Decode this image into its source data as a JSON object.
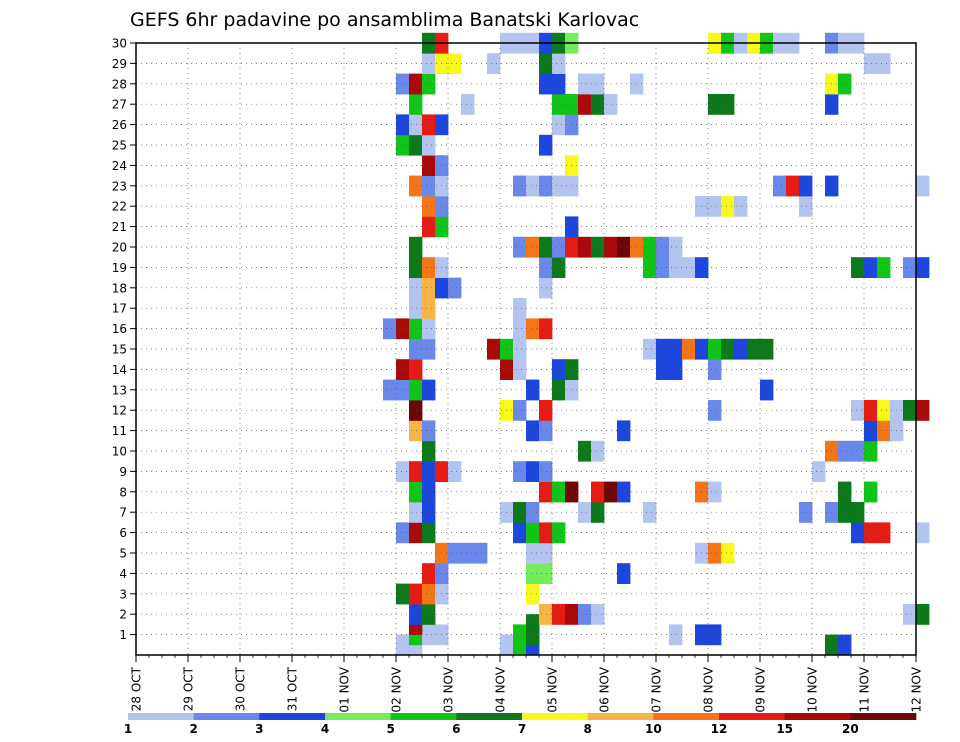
{
  "chart_data": {
    "type": "heatmap",
    "title": "GEFS 6hr padavine po ansamblima Banatski Karlovac",
    "x_tick_labels": [
      "28 OCT",
      "29 OCT",
      "30 OCT",
      "31 OCT",
      "01 NOV",
      "02 NOV",
      "03 NOV",
      "04 NOV",
      "05 NOV",
      "06 NOV",
      "07 NOV",
      "08 NOV",
      "09 NOV",
      "10 NOV",
      "11 NOV",
      "12 NOV"
    ],
    "x_range_days": [
      0,
      15
    ],
    "y_range": [
      0,
      30
    ],
    "y_ticks": [
      1,
      2,
      3,
      4,
      5,
      6,
      7,
      8,
      9,
      10,
      11,
      12,
      13,
      14,
      15,
      16,
      17,
      18,
      19,
      20,
      21,
      22,
      23,
      24,
      25,
      26,
      27,
      28,
      29,
      30
    ],
    "grid": "dotted",
    "colorbar": {
      "placement": "bottom",
      "labels": [
        "1",
        "2",
        "3",
        "4",
        "5",
        "6",
        "7",
        "8",
        "10",
        "12",
        "15",
        "20"
      ],
      "colors": [
        "#b4c4f0",
        "#6a88ea",
        "#1c46dc",
        "#74ec5e",
        "#10c418",
        "#0c7a1a",
        "#f8f81c",
        "#f8b446",
        "#f47418",
        "#e41c14",
        "#a80a0a",
        "#6e0606"
      ]
    },
    "cells_note": "each cell: [x in days since 28 OCT, member y, color class 0-11]",
    "cells": [
      [
        5.0,
        0.5,
        0
      ],
      [
        5.25,
        0.5,
        0
      ],
      [
        5.25,
        1,
        4
      ],
      [
        5.5,
        1,
        0
      ],
      [
        5.75,
        1,
        0
      ],
      [
        5.25,
        1.5,
        10
      ],
      [
        7.0,
        0.5,
        0
      ],
      [
        7.25,
        0.5,
        4
      ],
      [
        7.5,
        0.5,
        2
      ],
      [
        7.25,
        1,
        4
      ],
      [
        7.5,
        1,
        5
      ],
      [
        7.5,
        1.5,
        5
      ],
      [
        10.25,
        1,
        0
      ],
      [
        10.75,
        1,
        2
      ],
      [
        11.0,
        1,
        2
      ],
      [
        13.25,
        0.5,
        5
      ],
      [
        13.5,
        0.5,
        2
      ],
      [
        5.25,
        2,
        2
      ],
      [
        5.5,
        2,
        5
      ],
      [
        7.75,
        2,
        7
      ],
      [
        8.0,
        2,
        9
      ],
      [
        8.25,
        2,
        10
      ],
      [
        8.5,
        2,
        1
      ],
      [
        8.75,
        2,
        0
      ],
      [
        14.75,
        2,
        0
      ],
      [
        15.0,
        2,
        5
      ],
      [
        5.0,
        3,
        5
      ],
      [
        5.25,
        3,
        9
      ],
      [
        5.5,
        3,
        8
      ],
      [
        5.75,
        3,
        0
      ],
      [
        7.5,
        3,
        6
      ],
      [
        5.5,
        4,
        9
      ],
      [
        5.75,
        4,
        1
      ],
      [
        7.5,
        4,
        3
      ],
      [
        7.75,
        4,
        3
      ],
      [
        9.25,
        4,
        2
      ],
      [
        5.75,
        5,
        8
      ],
      [
        6.0,
        5,
        1
      ],
      [
        6.25,
        5,
        1
      ],
      [
        6.5,
        5,
        1
      ],
      [
        7.5,
        5,
        0
      ],
      [
        7.75,
        5,
        0
      ],
      [
        10.75,
        5,
        0
      ],
      [
        11.0,
        5,
        8
      ],
      [
        11.25,
        5,
        6
      ],
      [
        5.0,
        6,
        1
      ],
      [
        5.25,
        6,
        10
      ],
      [
        5.5,
        6,
        5
      ],
      [
        7.25,
        6,
        2
      ],
      [
        7.5,
        6,
        4
      ],
      [
        7.75,
        6,
        9
      ],
      [
        8.0,
        6,
        4
      ],
      [
        13.75,
        6,
        2
      ],
      [
        14.0,
        6,
        9
      ],
      [
        14.25,
        6,
        9
      ],
      [
        15.0,
        6,
        0
      ],
      [
        5.25,
        7,
        0
      ],
      [
        5.5,
        7,
        2
      ],
      [
        7.0,
        7,
        0
      ],
      [
        7.25,
        7,
        5
      ],
      [
        7.5,
        7,
        1
      ],
      [
        8.5,
        7,
        0
      ],
      [
        8.75,
        7,
        5
      ],
      [
        9.75,
        7,
        0
      ],
      [
        12.75,
        7,
        1
      ],
      [
        13.25,
        7,
        1
      ],
      [
        13.5,
        7,
        5
      ],
      [
        13.75,
        7,
        5
      ],
      [
        5.25,
        8,
        4
      ],
      [
        5.5,
        8,
        2
      ],
      [
        7.75,
        8,
        9
      ],
      [
        8.0,
        8,
        4
      ],
      [
        8.25,
        8,
        11
      ],
      [
        8.75,
        8,
        9
      ],
      [
        9.0,
        8,
        11
      ],
      [
        9.25,
        8,
        2
      ],
      [
        10.75,
        8,
        8
      ],
      [
        11.0,
        8,
        0
      ],
      [
        13.5,
        8,
        5
      ],
      [
        14.0,
        8,
        4
      ],
      [
        5.0,
        9,
        0
      ],
      [
        5.25,
        9,
        9
      ],
      [
        5.5,
        9,
        2
      ],
      [
        5.75,
        9,
        9
      ],
      [
        6.0,
        9,
        0
      ],
      [
        7.25,
        9,
        1
      ],
      [
        7.5,
        9,
        2
      ],
      [
        7.75,
        9,
        1
      ],
      [
        13.0,
        9,
        0
      ],
      [
        5.5,
        10,
        5
      ],
      [
        8.5,
        10,
        5
      ],
      [
        8.75,
        10,
        0
      ],
      [
        13.25,
        10,
        8
      ],
      [
        13.5,
        10,
        1
      ],
      [
        13.75,
        10,
        1
      ],
      [
        14.0,
        10,
        4
      ],
      [
        5.25,
        11,
        7
      ],
      [
        5.5,
        11,
        1
      ],
      [
        7.5,
        11,
        2
      ],
      [
        7.75,
        11,
        1
      ],
      [
        9.25,
        11,
        2
      ],
      [
        14.0,
        11,
        2
      ],
      [
        14.25,
        11,
        8
      ],
      [
        14.5,
        11,
        0
      ],
      [
        5.25,
        12,
        11
      ],
      [
        7.0,
        12,
        6
      ],
      [
        7.25,
        12,
        1
      ],
      [
        7.75,
        12,
        9
      ],
      [
        11.0,
        12,
        1
      ],
      [
        13.75,
        12,
        0
      ],
      [
        14.0,
        12,
        9
      ],
      [
        14.25,
        12,
        6
      ],
      [
        14.5,
        12,
        0
      ],
      [
        14.75,
        12,
        5
      ],
      [
        15.0,
        12,
        10
      ],
      [
        4.75,
        13,
        1
      ],
      [
        5.0,
        13,
        1
      ],
      [
        5.25,
        13,
        4
      ],
      [
        5.5,
        13,
        2
      ],
      [
        7.5,
        13,
        2
      ],
      [
        8.0,
        13,
        5
      ],
      [
        8.25,
        13,
        0
      ],
      [
        12.0,
        13,
        2
      ],
      [
        5.0,
        14,
        10
      ],
      [
        5.25,
        14,
        9
      ],
      [
        7.0,
        14,
        10
      ],
      [
        7.25,
        14,
        0
      ],
      [
        8.0,
        14,
        2
      ],
      [
        8.25,
        14,
        5
      ],
      [
        10.0,
        14,
        2
      ],
      [
        10.25,
        14,
        2
      ],
      [
        11.0,
        14,
        1
      ],
      [
        5.25,
        15,
        1
      ],
      [
        5.5,
        15,
        1
      ],
      [
        6.75,
        15,
        10
      ],
      [
        7.0,
        15,
        4
      ],
      [
        7.25,
        15,
        0
      ],
      [
        9.75,
        15,
        0
      ],
      [
        10.0,
        15,
        2
      ],
      [
        10.25,
        15,
        2
      ],
      [
        10.5,
        15,
        8
      ],
      [
        10.75,
        15,
        2
      ],
      [
        11.0,
        15,
        4
      ],
      [
        11.25,
        15,
        5
      ],
      [
        11.5,
        15,
        2
      ],
      [
        11.75,
        15,
        5
      ],
      [
        12.0,
        15,
        5
      ],
      [
        4.75,
        16,
        1
      ],
      [
        5.0,
        16,
        10
      ],
      [
        5.25,
        16,
        4
      ],
      [
        5.5,
        16,
        0
      ],
      [
        7.25,
        16,
        0
      ],
      [
        7.5,
        16,
        8
      ],
      [
        7.75,
        16,
        9
      ],
      [
        5.25,
        17,
        0
      ],
      [
        5.5,
        17,
        7
      ],
      [
        7.25,
        17,
        0
      ],
      [
        5.25,
        18,
        0
      ],
      [
        5.5,
        18,
        7
      ],
      [
        5.75,
        18,
        2
      ],
      [
        6.0,
        18,
        1
      ],
      [
        7.75,
        18,
        0
      ],
      [
        5.25,
        19,
        5
      ],
      [
        5.5,
        19,
        8
      ],
      [
        5.75,
        19,
        0
      ],
      [
        7.75,
        19,
        1
      ],
      [
        8.0,
        19,
        5
      ],
      [
        9.75,
        19,
        4
      ],
      [
        10.0,
        19,
        1
      ],
      [
        10.25,
        19,
        0
      ],
      [
        10.5,
        19,
        0
      ],
      [
        10.75,
        19,
        2
      ],
      [
        13.75,
        19,
        5
      ],
      [
        14.0,
        19,
        2
      ],
      [
        14.25,
        19,
        4
      ],
      [
        14.75,
        19,
        1
      ],
      [
        15.0,
        19,
        2
      ],
      [
        5.25,
        20,
        5
      ],
      [
        7.25,
        20,
        1
      ],
      [
        7.5,
        20,
        8
      ],
      [
        7.75,
        20,
        5
      ],
      [
        8.0,
        20,
        1
      ],
      [
        8.25,
        20,
        9
      ],
      [
        8.5,
        20,
        10
      ],
      [
        8.75,
        20,
        5
      ],
      [
        9.0,
        20,
        10
      ],
      [
        9.25,
        20,
        11
      ],
      [
        9.5,
        20,
        8
      ],
      [
        9.75,
        20,
        4
      ],
      [
        10.0,
        20,
        1
      ],
      [
        10.25,
        20,
        0
      ],
      [
        5.5,
        21,
        9
      ],
      [
        5.75,
        21,
        4
      ],
      [
        8.25,
        21,
        2
      ],
      [
        5.5,
        22,
        8
      ],
      [
        5.75,
        22,
        1
      ],
      [
        10.75,
        22,
        0
      ],
      [
        11.0,
        22,
        0
      ],
      [
        11.25,
        22,
        6
      ],
      [
        11.5,
        22,
        0
      ],
      [
        12.75,
        22,
        0
      ],
      [
        5.25,
        23,
        8
      ],
      [
        5.5,
        23,
        1
      ],
      [
        5.75,
        23,
        0
      ],
      [
        7.25,
        23,
        1
      ],
      [
        7.5,
        23,
        0
      ],
      [
        7.75,
        23,
        1
      ],
      [
        8.0,
        23,
        0
      ],
      [
        8.25,
        23,
        0
      ],
      [
        12.25,
        23,
        1
      ],
      [
        12.5,
        23,
        9
      ],
      [
        12.75,
        23,
        2
      ],
      [
        13.25,
        23,
        2
      ],
      [
        15.0,
        23,
        0
      ],
      [
        5.5,
        24,
        10
      ],
      [
        5.75,
        24,
        1
      ],
      [
        8.25,
        24,
        6
      ],
      [
        5.0,
        25,
        4
      ],
      [
        5.25,
        25,
        5
      ],
      [
        5.5,
        25,
        0
      ],
      [
        7.75,
        25,
        2
      ],
      [
        5.0,
        26,
        2
      ],
      [
        5.25,
        26,
        0
      ],
      [
        5.5,
        26,
        9
      ],
      [
        5.75,
        26,
        2
      ],
      [
        8.0,
        26,
        0
      ],
      [
        8.25,
        26,
        1
      ],
      [
        5.25,
        27,
        4
      ],
      [
        6.25,
        27,
        0
      ],
      [
        8.0,
        27,
        4
      ],
      [
        8.25,
        27,
        4
      ],
      [
        8.5,
        27,
        10
      ],
      [
        8.75,
        27,
        5
      ],
      [
        9.0,
        27,
        0
      ],
      [
        11.0,
        27,
        5
      ],
      [
        11.25,
        27,
        5
      ],
      [
        13.25,
        27,
        2
      ],
      [
        5.0,
        28,
        1
      ],
      [
        5.25,
        28,
        10
      ],
      [
        5.5,
        28,
        4
      ],
      [
        7.75,
        28,
        2
      ],
      [
        8.0,
        28,
        2
      ],
      [
        8.5,
        28,
        0
      ],
      [
        8.75,
        28,
        0
      ],
      [
        9.5,
        28,
        0
      ],
      [
        13.25,
        28,
        6
      ],
      [
        13.5,
        28,
        4
      ],
      [
        5.5,
        29,
        0
      ],
      [
        5.75,
        29,
        6
      ],
      [
        6.0,
        29,
        6
      ],
      [
        6.75,
        29,
        0
      ],
      [
        7.75,
        29,
        5
      ],
      [
        8.0,
        29,
        0
      ],
      [
        14.0,
        29,
        0
      ],
      [
        14.25,
        29,
        0
      ],
      [
        5.5,
        30,
        5
      ],
      [
        5.75,
        30,
        9
      ],
      [
        7.0,
        30,
        0
      ],
      [
        7.25,
        30,
        0
      ],
      [
        7.5,
        30,
        0
      ],
      [
        7.75,
        30,
        2
      ],
      [
        8.0,
        30,
        5
      ],
      [
        8.25,
        30,
        3
      ],
      [
        11.0,
        30,
        6
      ],
      [
        11.25,
        30,
        4
      ],
      [
        11.5,
        30,
        0
      ],
      [
        11.75,
        30,
        6
      ],
      [
        12.0,
        30,
        4
      ],
      [
        12.25,
        30,
        0
      ],
      [
        12.5,
        30,
        0
      ],
      [
        13.25,
        30,
        1
      ],
      [
        13.5,
        30,
        0
      ],
      [
        13.75,
        30,
        0
      ]
    ]
  }
}
